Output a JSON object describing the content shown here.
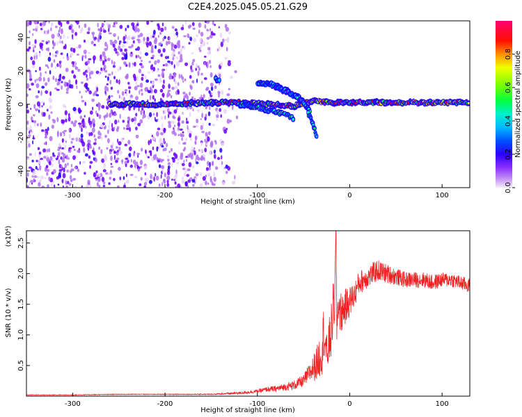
{
  "chart_data": [
    {
      "type": "heatmap",
      "title": "C2E4.2025.045.05.21.G29",
      "xlabel": "Height of straight line (km)",
      "ylabel": "Frequency (Hz)",
      "xlim": [
        -350,
        130
      ],
      "ylim": [
        -50,
        50
      ],
      "xticks": [
        -300,
        -200,
        -100,
        0,
        100
      ],
      "yticks": [
        -40,
        -20,
        0,
        20,
        40
      ],
      "colorbar": {
        "label": "Normalized spectral amplitude",
        "range": [
          0,
          1
        ],
        "ticks": [
          "0.0",
          "0.2",
          "0.4",
          "0.6",
          "0.8"
        ],
        "colors": [
          "#e8d4f8",
          "#b070f0",
          "#6a00ff",
          "#1a00ff",
          "#0060ff",
          "#00c0ff",
          "#00ffb0",
          "#00ff20",
          "#a0ff00",
          "#ffff00",
          "#ff8000",
          "#ff0000",
          "#ff0060"
        ]
      },
      "tracks": [
        {
          "x": [
            -260,
            -200,
            -150,
            -120,
            -90,
            -60,
            -40,
            -20,
            0,
            40,
            80,
            130
          ],
          "y": [
            0,
            0,
            1,
            1,
            0,
            -1,
            2,
            1,
            1,
            1,
            1,
            1
          ],
          "level": 0.9
        },
        {
          "x": [
            -100,
            -85,
            -70,
            -55,
            -45
          ],
          "y": [
            13,
            12,
            9,
            4,
            -2
          ],
          "level": 0.55
        },
        {
          "x": [
            -80,
            -70,
            -60,
            -50,
            -42
          ],
          "y": [
            10,
            8,
            5,
            1,
            -5
          ],
          "level": 0.5
        },
        {
          "x": [
            -45,
            -41,
            -38,
            -35
          ],
          "y": [
            -5,
            -10,
            -15,
            -21
          ],
          "level": 0.55
        },
        {
          "x": [
            -120,
            -100,
            -85,
            -70,
            -60
          ],
          "y": [
            0,
            -2,
            -4,
            -6,
            -9
          ],
          "level": 0.6
        },
        {
          "x": [
            -145,
            -140
          ],
          "y": [
            15,
            14
          ],
          "level": 0.5
        }
      ]
    },
    {
      "type": "line",
      "xlabel": "Height of straight line (km)",
      "ylabel": "SNR (10 * v/v)",
      "yscale_label": "(x10⁴)",
      "xlim": [
        -350,
        130
      ],
      "ylim": [
        0,
        2.7
      ],
      "xticks": [
        -300,
        -200,
        -100,
        0,
        100
      ],
      "yticks": [
        "0.5",
        "1.0",
        "1.5",
        "2.0",
        "2.5"
      ],
      "color": "#ee2222",
      "series": [
        {
          "x": [
            -350,
            -300,
            -250,
            -200,
            -150,
            -120,
            -100,
            -90,
            -80,
            -70,
            -60,
            -50,
            -45,
            -40,
            -35,
            -30,
            -28,
            -25,
            -22,
            -20,
            -18,
            -16,
            -15,
            -14,
            -12,
            -10,
            -5,
            0,
            5,
            10,
            20,
            30,
            40,
            50,
            60,
            70,
            80,
            90,
            100,
            110,
            120,
            130
          ],
          "y": [
            0.02,
            0.02,
            0.03,
            0.03,
            0.03,
            0.05,
            0.08,
            0.11,
            0.12,
            0.15,
            0.18,
            0.25,
            0.35,
            0.45,
            0.55,
            0.75,
            1.1,
            0.65,
            0.9,
            1.05,
            1.4,
            1.6,
            2.7,
            1.2,
            1.55,
            1.35,
            1.45,
            1.55,
            1.65,
            1.85,
            1.95,
            2.05,
            2.0,
            1.95,
            1.9,
            1.9,
            1.9,
            1.85,
            1.9,
            1.9,
            1.85,
            1.8
          ],
          "noise": [
            0.005,
            0.005,
            0.006,
            0.006,
            0.008,
            0.02,
            0.03,
            0.04,
            0.05,
            0.06,
            0.08,
            0.1,
            0.15,
            0.2,
            0.3,
            0.4,
            0.45,
            0.35,
            0.4,
            0.45,
            0.45,
            0.4,
            0.2,
            0.4,
            0.35,
            0.35,
            0.3,
            0.25,
            0.22,
            0.2,
            0.18,
            0.18,
            0.16,
            0.14,
            0.13,
            0.13,
            0.13,
            0.13,
            0.12,
            0.12,
            0.12,
            0.12
          ]
        }
      ]
    }
  ]
}
